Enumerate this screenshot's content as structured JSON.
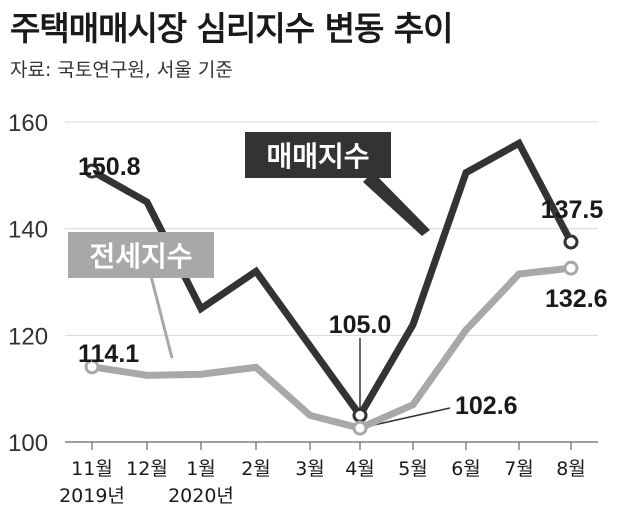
{
  "title": "주택매매시장 심리지수 변동 추이",
  "source": "자료: 국토연구원, 서울 기준",
  "colors": {
    "sale": "#333333",
    "jeonse": "#a8a8a8",
    "grid": "#d9d9d9"
  },
  "chart_data": {
    "type": "line",
    "title": "주택매매시장 심리지수 변동 추이",
    "categories": [
      "11월",
      "12월",
      "1월",
      "2월",
      "3월",
      "4월",
      "5월",
      "6월",
      "7월",
      "8월"
    ],
    "year_labels": [
      "2019년",
      "",
      "2020년",
      "",
      "",
      "",
      "",
      "",
      "",
      ""
    ],
    "yticks": [
      100,
      120,
      140,
      160
    ],
    "ylim": [
      100,
      160
    ],
    "grid": true,
    "series": [
      {
        "name": "매매지수",
        "values": [
          150.8,
          145,
          125,
          132,
          118,
          105.0,
          122,
          150.5,
          156,
          137.5
        ]
      },
      {
        "name": "전세지수",
        "values": [
          114.1,
          112.5,
          112.7,
          114,
          105,
          102.6,
          107,
          121,
          131.5,
          132.6
        ]
      }
    ],
    "point_labels": [
      {
        "text": "150.8"
      },
      {
        "text": "114.1"
      },
      {
        "text": "105.0"
      },
      {
        "text": "102.6"
      },
      {
        "text": "137.5"
      },
      {
        "text": "132.6"
      }
    ]
  }
}
